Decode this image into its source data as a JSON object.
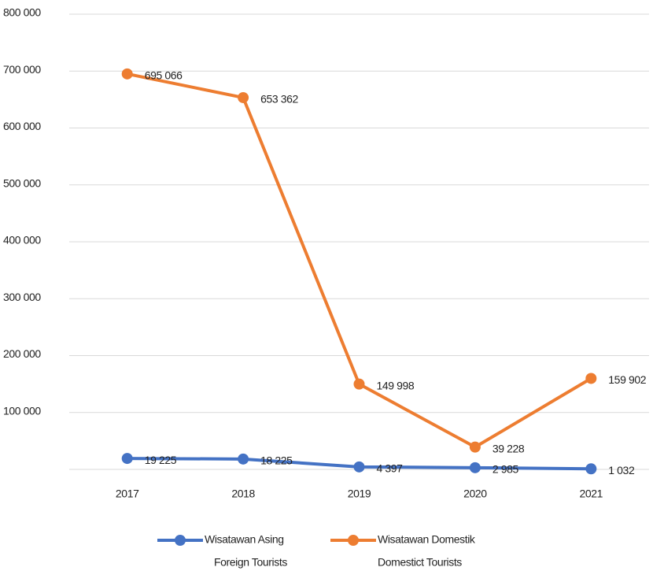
{
  "chart_data": {
    "type": "line",
    "categories": [
      "2017",
      "2018",
      "2019",
      "2020",
      "2021"
    ],
    "series": [
      {
        "name": "Wisatawan Asing",
        "subname": "Foreign Tourists",
        "color": "#4472c4",
        "values": [
          19225,
          18225,
          4397,
          2985,
          1032
        ],
        "value_labels": [
          "19 225",
          "18 225",
          "4 397",
          "2 985",
          "1 032"
        ]
      },
      {
        "name": "Wisatawan Domestik",
        "subname": "Domestict Tourists",
        "color": "#ed7d31",
        "values": [
          695066,
          653362,
          149998,
          39228,
          159902
        ],
        "value_labels": [
          "695 066",
          "653 362",
          "149 998",
          "39 228",
          "159 902"
        ]
      }
    ],
    "ylim": [
      0,
      800000
    ],
    "yticks": [
      {
        "value": 100000,
        "label": "100 000"
      },
      {
        "value": 200000,
        "label": "200 000"
      },
      {
        "value": 300000,
        "label": "300 000"
      },
      {
        "value": 400000,
        "label": "400 000"
      },
      {
        "value": 500000,
        "label": "500 000"
      },
      {
        "value": 600000,
        "label": "600 000"
      },
      {
        "value": 700000,
        "label": "700 000"
      },
      {
        "value": 800000,
        "label": "800 000"
      }
    ],
    "grid": true,
    "legend": "bottom"
  }
}
